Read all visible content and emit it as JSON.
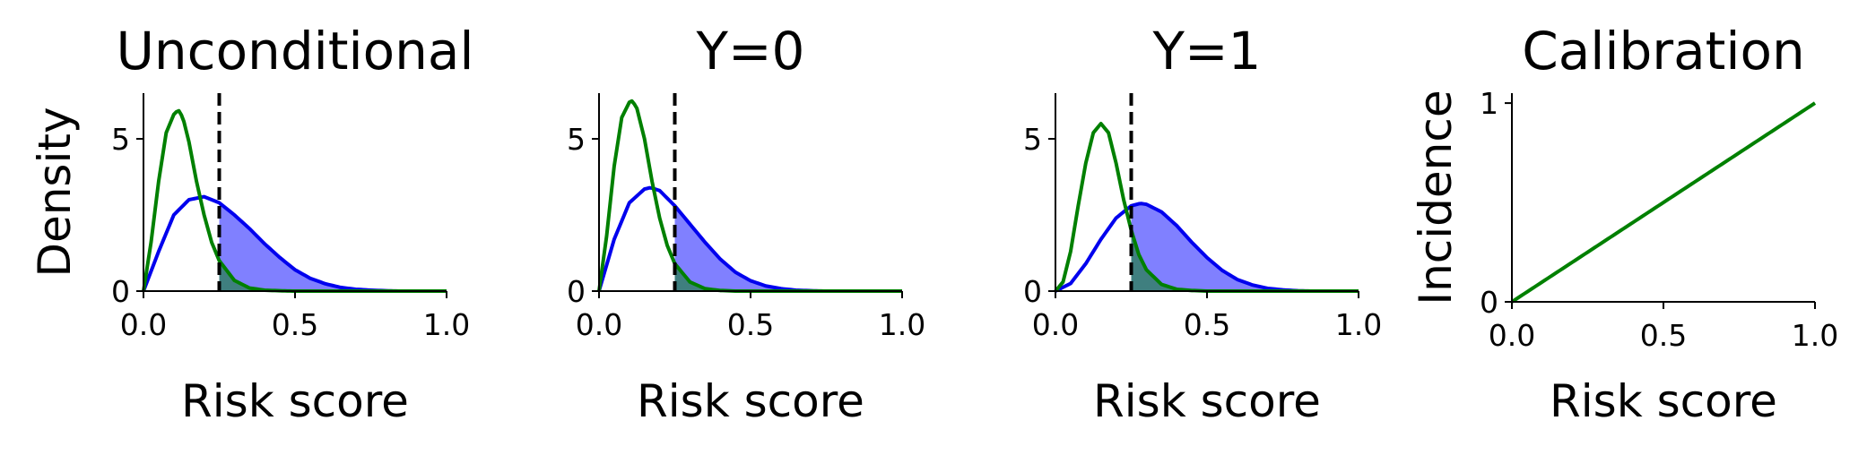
{
  "chart_data": [
    {
      "type": "line",
      "title": "Unconditional",
      "xlabel": "Risk score",
      "ylabel": "Density",
      "xlim": [
        0,
        1
      ],
      "ylim": [
        0,
        6.5
      ],
      "xticks": [
        "0.0",
        "0.5",
        "1.0"
      ],
      "yticks": [
        "0",
        "5"
      ],
      "threshold": 0.25,
      "grid": false,
      "series": [
        {
          "color": "#0000ee",
          "x": [
            0,
            0.05,
            0.1,
            0.15,
            0.2,
            0.25,
            0.3,
            0.35,
            0.4,
            0.45,
            0.5,
            0.55,
            0.6,
            0.65,
            0.7,
            0.75,
            0.8,
            0.85,
            0.9,
            0.95,
            1.0
          ],
          "values": [
            0,
            1.3,
            2.5,
            3.0,
            3.1,
            2.9,
            2.5,
            2.05,
            1.55,
            1.1,
            0.7,
            0.42,
            0.24,
            0.12,
            0.06,
            0.03,
            0.01,
            0.0,
            0.0,
            0.0,
            0.0
          ]
        },
        {
          "color": "#008000",
          "x": [
            0,
            0.025,
            0.05,
            0.075,
            0.1,
            0.115,
            0.13,
            0.15,
            0.175,
            0.2,
            0.225,
            0.25,
            0.3,
            0.35,
            0.4,
            0.45,
            0.5,
            0.6,
            0.7,
            0.8,
            0.9,
            1.0
          ],
          "values": [
            0,
            1.6,
            3.6,
            5.2,
            5.8,
            5.95,
            5.7,
            4.9,
            3.6,
            2.5,
            1.6,
            1.0,
            0.35,
            0.1,
            0.03,
            0.01,
            0.0,
            0.0,
            0.0,
            0.0,
            0.0,
            0.0
          ]
        }
      ]
    },
    {
      "type": "line",
      "title": "Y=0",
      "xlabel": "Risk score",
      "ylabel": "",
      "xlim": [
        0,
        1
      ],
      "ylim": [
        0,
        6.5
      ],
      "xticks": [
        "0.0",
        "0.5",
        "1.0"
      ],
      "yticks": [
        "0",
        "5"
      ],
      "threshold": 0.25,
      "grid": false,
      "series": [
        {
          "color": "#0000ee",
          "x": [
            0,
            0.05,
            0.1,
            0.15,
            0.17,
            0.2,
            0.25,
            0.3,
            0.35,
            0.4,
            0.45,
            0.5,
            0.55,
            0.6,
            0.65,
            0.7,
            0.75,
            0.8,
            0.85,
            0.9,
            1.0
          ],
          "values": [
            0,
            1.7,
            2.9,
            3.35,
            3.4,
            3.3,
            2.8,
            2.2,
            1.6,
            1.05,
            0.62,
            0.34,
            0.17,
            0.08,
            0.03,
            0.01,
            0.0,
            0.0,
            0.0,
            0.0,
            0.0
          ]
        },
        {
          "color": "#008000",
          "x": [
            0,
            0.025,
            0.05,
            0.075,
            0.1,
            0.11,
            0.125,
            0.15,
            0.175,
            0.2,
            0.225,
            0.25,
            0.3,
            0.35,
            0.4,
            0.45,
            0.5,
            0.6,
            0.7,
            0.8,
            0.9,
            1.0
          ],
          "values": [
            0,
            1.8,
            4.1,
            5.7,
            6.2,
            6.25,
            6.0,
            5.0,
            3.6,
            2.4,
            1.5,
            0.9,
            0.3,
            0.08,
            0.02,
            0.0,
            0.0,
            0.0,
            0.0,
            0.0,
            0.0,
            0.0
          ]
        }
      ]
    },
    {
      "type": "line",
      "title": "Y=1",
      "xlabel": "Risk score",
      "ylabel": "",
      "xlim": [
        0,
        1
      ],
      "ylim": [
        0,
        6.5
      ],
      "xticks": [
        "0.0",
        "0.5",
        "1.0"
      ],
      "yticks": [
        "0",
        "5"
      ],
      "threshold": 0.25,
      "grid": false,
      "series": [
        {
          "color": "#0000ee",
          "x": [
            0,
            0.05,
            0.1,
            0.15,
            0.2,
            0.25,
            0.28,
            0.3,
            0.35,
            0.4,
            0.45,
            0.5,
            0.55,
            0.6,
            0.65,
            0.7,
            0.75,
            0.8,
            0.85,
            0.9,
            1.0
          ],
          "values": [
            0,
            0.25,
            0.9,
            1.7,
            2.4,
            2.8,
            2.88,
            2.85,
            2.6,
            2.15,
            1.6,
            1.1,
            0.68,
            0.38,
            0.2,
            0.09,
            0.04,
            0.01,
            0.0,
            0.0,
            0.0
          ]
        },
        {
          "color": "#008000",
          "x": [
            0,
            0.025,
            0.05,
            0.075,
            0.1,
            0.125,
            0.15,
            0.175,
            0.2,
            0.225,
            0.25,
            0.275,
            0.3,
            0.35,
            0.4,
            0.45,
            0.5,
            0.6,
            0.7,
            0.8,
            0.9,
            1.0
          ],
          "values": [
            0,
            0.3,
            1.3,
            2.8,
            4.2,
            5.2,
            5.5,
            5.2,
            4.2,
            3.0,
            2.0,
            1.2,
            0.7,
            0.22,
            0.06,
            0.02,
            0.0,
            0.0,
            0.0,
            0.0,
            0.0,
            0.0
          ]
        }
      ]
    },
    {
      "type": "line",
      "title": "Calibration",
      "xlabel": "Risk score",
      "ylabel": "Incidence",
      "xlim": [
        0,
        1
      ],
      "ylim": [
        0,
        1.05
      ],
      "xticks": [
        "0.0",
        "0.5",
        "1.0"
      ],
      "yticks": [
        "0",
        "1"
      ],
      "grid": false,
      "series": [
        {
          "color": "#008000",
          "x": [
            0,
            1
          ],
          "values": [
            0,
            1
          ]
        }
      ]
    }
  ],
  "style": {
    "blue": "#0000ee",
    "green": "#008000",
    "fill_blue": "#8080ff",
    "fill_teal": "#3f7f7f",
    "threshold_color": "#000000"
  }
}
